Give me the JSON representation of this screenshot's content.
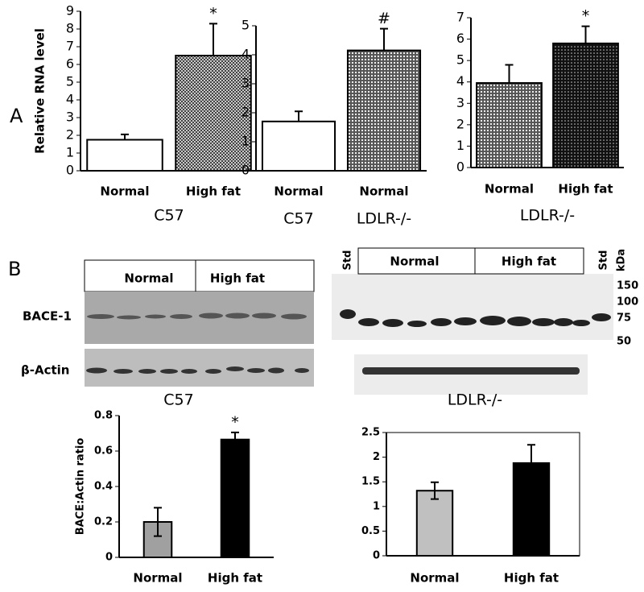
{
  "chart_data": [
    {
      "type": "bar",
      "ylabel": "Relative RNA level",
      "categories": [
        "Normal",
        "High fat"
      ],
      "values": [
        1.75,
        6.5
      ],
      "errors": [
        0.3,
        1.8
      ],
      "bar_fills": [
        "white",
        "crosshatch"
      ],
      "annotations": [
        null,
        "*"
      ],
      "group_labels": [
        "C57"
      ],
      "ylim": [
        0,
        9
      ],
      "yticks": [
        0,
        1,
        2,
        3,
        4,
        5,
        6,
        7,
        8,
        9
      ]
    },
    {
      "type": "bar",
      "categories": [
        "Normal",
        "Normal"
      ],
      "values": [
        1.7,
        4.15
      ],
      "errors": [
        0.35,
        0.75
      ],
      "bar_fills": [
        "white",
        "dots"
      ],
      "annotations": [
        null,
        "#"
      ],
      "group_labels": [
        "C57",
        "LDLR-/-"
      ],
      "ylim": [
        0,
        5
      ],
      "yticks": [
        0,
        1,
        2,
        3,
        4,
        5
      ]
    },
    {
      "type": "bar",
      "categories": [
        "Normal",
        "High fat"
      ],
      "values": [
        3.95,
        5.8
      ],
      "errors": [
        0.85,
        0.8
      ],
      "bar_fills": [
        "dots",
        "dark-dots"
      ],
      "annotations": [
        null,
        "*"
      ],
      "group_labels": [
        "LDLR-/-"
      ],
      "ylim": [
        0,
        7
      ],
      "yticks": [
        0,
        1,
        2,
        3,
        4,
        5,
        6,
        7
      ]
    },
    {
      "type": "bar",
      "ylabel": "BACE:Actin ratio",
      "categories": [
        "Normal",
        "High fat"
      ],
      "values": [
        0.2,
        0.665
      ],
      "errors": [
        0.08,
        0.04
      ],
      "bar_fills": [
        "#a0a0a0",
        "#000000"
      ],
      "annotations": [
        null,
        "*"
      ],
      "ylim": [
        0,
        0.8
      ],
      "yticks": [
        0,
        0.2,
        0.4,
        0.6,
        0.8
      ]
    },
    {
      "type": "bar",
      "categories": [
        "Normal",
        "High fat"
      ],
      "values": [
        1.32,
        1.88
      ],
      "errors": [
        0.17,
        0.37
      ],
      "bar_fills": [
        "#c0c0c0",
        "#000000"
      ],
      "annotations": [
        null,
        null
      ],
      "ylim": [
        0,
        2.5
      ],
      "yticks": [
        0,
        0.5,
        1,
        1.5,
        2,
        2.5
      ]
    }
  ],
  "panels": {
    "a": "A",
    "b": "B"
  },
  "blots": {
    "left": {
      "label": "C57",
      "header": [
        "Normal",
        "High fat"
      ],
      "rows": [
        "BACE-1",
        "β-Actin"
      ]
    },
    "right": {
      "label": "LDLR-/-",
      "header": [
        "Normal",
        "High fat"
      ],
      "std": "Std",
      "unit": "kDa",
      "markers": [
        "150",
        "100",
        "75",
        "50"
      ]
    }
  }
}
